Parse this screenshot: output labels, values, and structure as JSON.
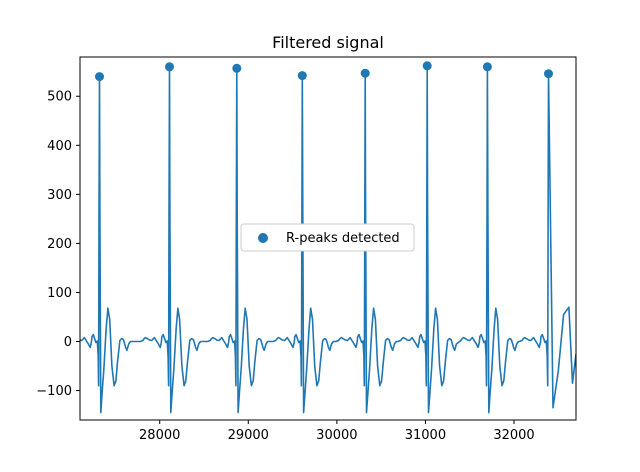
{
  "chart_data": {
    "type": "line",
    "title": "Filtered signal",
    "xlabel": "",
    "ylabel": "",
    "xlim": [
      27100,
      32700
    ],
    "ylim": [
      -160,
      580
    ],
    "xticks": [
      28000,
      29000,
      30000,
      31000,
      32000
    ],
    "yticks": [
      -100,
      0,
      100,
      200,
      300,
      400,
      500
    ],
    "grid": false,
    "legend": {
      "placement": "center",
      "entries": [
        "R-peaks detected"
      ]
    },
    "colors": {
      "line": "#1f77b4",
      "markers": "#1f77b4"
    },
    "beat_shape": {
      "offsets": [
        -330,
        -300,
        -285,
        -270,
        -250,
        -225,
        -200,
        -170,
        -150,
        -125,
        -105,
        -92,
        -85,
        -70,
        -55,
        -40,
        -25,
        -15,
        -10,
        -5,
        0,
        5,
        15,
        30,
        50,
        75,
        95,
        115,
        140,
        165,
        185,
        205,
        230,
        250,
        270,
        285,
        295,
        310,
        330,
        350
      ],
      "values": [
        0,
        2,
        6,
        8,
        6,
        3,
        2,
        8,
        2,
        -5,
        -12,
        -2,
        10,
        14,
        6,
        -2,
        1,
        -30,
        -90,
        250,
        545,
        260,
        -145,
        -105,
        -55,
        25,
        68,
        45,
        -50,
        -90,
        -80,
        -40,
        2,
        6,
        4,
        -5,
        -12,
        -18,
        -5,
        0
      ]
    },
    "series": [
      {
        "type": "scatter",
        "name": "R-peaks detected",
        "x": [
          27320,
          28110,
          28870,
          29610,
          30320,
          31020,
          31700,
          32390
        ],
        "y": [
          540,
          560,
          557,
          542,
          547,
          562,
          560,
          546
        ]
      }
    ],
    "trailing_segment": {
      "x": [
        32390,
        32440,
        32500,
        32560,
        32620,
        32660,
        32700
      ],
      "y": [
        546,
        -135,
        -60,
        55,
        70,
        -85,
        -25
      ]
    }
  }
}
